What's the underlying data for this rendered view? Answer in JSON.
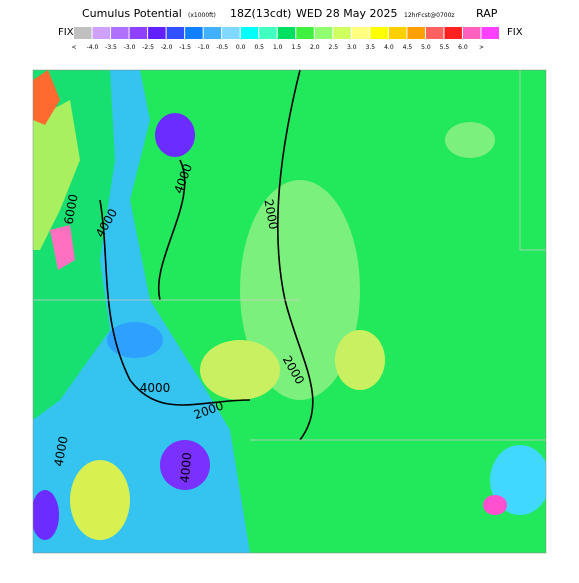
{
  "header": {
    "title": "Cumulus Potential",
    "units": "(x1000ft)",
    "valid": "18Z(13cdt)",
    "date": "WED 28 May 2025",
    "forecast": "12hrFcst@0700z",
    "model": "RAP"
  },
  "legend": {
    "left": "FIX",
    "right": "FIX",
    "labels": [
      "<",
      "-4.0",
      "-3.5",
      "-3.0",
      "-2.5",
      "-2.0",
      "-1.5",
      "-1.0",
      "-0.5",
      "0.0",
      "0.5",
      "1.0",
      "1.5",
      "2.0",
      "2.5",
      "3.0",
      "3.5",
      "4.0",
      "4.5",
      "5.0",
      "5.5",
      "6.0",
      ">"
    ]
  },
  "contours": {
    "labels": [
      "4000",
      "6000",
      "4000",
      "2000",
      "2000",
      "4000",
      "2000",
      "4000",
      "4000"
    ]
  }
}
